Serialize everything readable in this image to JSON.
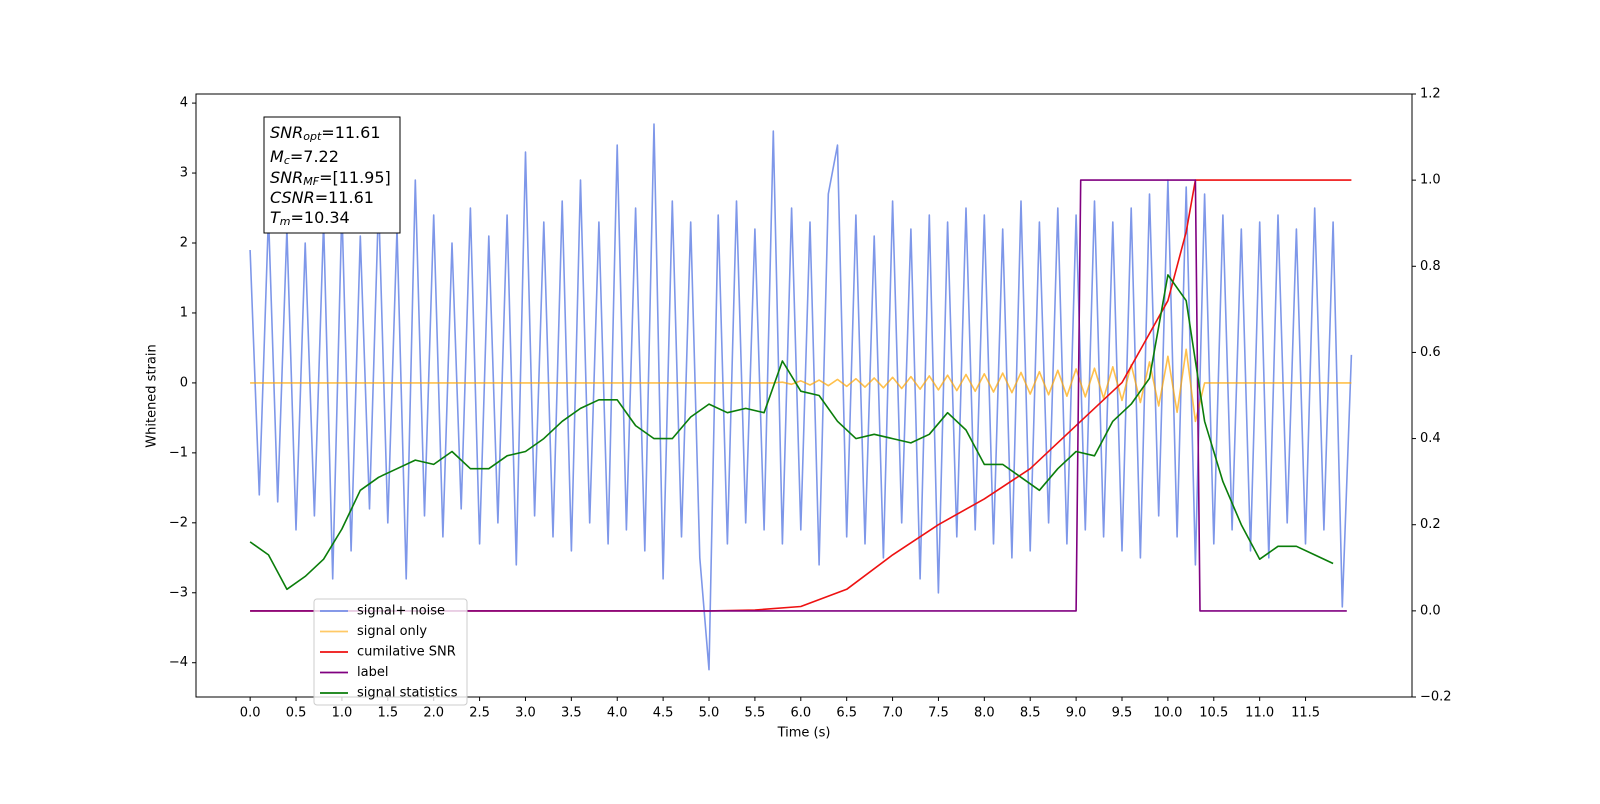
{
  "chart_data": {
    "type": "line",
    "xlabel": "Time (s)",
    "ylabel": "Whitened strain",
    "xlim": [
      -0.59,
      12.66
    ],
    "ylim": [
      -4.49,
      4.13
    ],
    "y2lim": [
      -0.2,
      1.2
    ],
    "xticks": [
      {
        "value": 0,
        "label": "0.0"
      },
      0.5,
      {
        "value": 1,
        "label": "1.0"
      },
      1.5,
      {
        "value": 2,
        "label": "2.0"
      },
      2.5,
      {
        "value": 3,
        "label": "3.0"
      },
      3.5,
      {
        "value": 4,
        "label": "4.0"
      },
      4.5,
      {
        "value": 5,
        "label": "5.0"
      },
      5.5,
      {
        "value": 6,
        "label": "6.0"
      },
      6.5,
      {
        "value": 7,
        "label": "7.0"
      },
      7.5,
      {
        "value": 8,
        "label": "8.0"
      },
      8.5,
      {
        "value": 9,
        "label": "9.0"
      },
      9.5,
      {
        "value": 10,
        "label": "10.0"
      },
      10.5,
      {
        "value": 11,
        "label": "11.0"
      },
      11.5
    ],
    "yticks": [
      {
        "value": -4,
        "label": "−4"
      },
      {
        "value": -3,
        "label": "−3"
      },
      {
        "value": -2,
        "label": "−2"
      },
      {
        "value": -1,
        "label": "−1"
      },
      0,
      1,
      2,
      3,
      4
    ],
    "y2ticks": [
      {
        "value": -0.2,
        "label": "−0.2"
      },
      {
        "value": 0,
        "label": "0.0"
      },
      0.2,
      0.4,
      0.6,
      0.8,
      {
        "value": 1,
        "label": "1.0"
      },
      1.2
    ],
    "legend": "lower left",
    "annotation": [
      {
        "symbol": "SNR",
        "subscript": "opt",
        "text": "=11.61"
      },
      {
        "symbol": "M",
        "subscript": "c",
        "text": "=7.22"
      },
      {
        "symbol": "SNR",
        "subscript": "MF",
        "text": "=[11.95]"
      },
      {
        "symbol": "CSNR",
        "subscript": "",
        "text": "=11.61"
      },
      {
        "symbol": "T",
        "subscript": "m",
        "text": "=10.34"
      }
    ],
    "series": [
      {
        "name": "signal+ noise",
        "color": "#7791e8",
        "axis": "y",
        "x": [
          0,
          0.1,
          0.2,
          0.3,
          0.4,
          0.5,
          0.6,
          0.7,
          0.8,
          0.9,
          1,
          1.1,
          1.2,
          1.3,
          1.4,
          1.5,
          1.6,
          1.7,
          1.8,
          1.9,
          2,
          2.1,
          2.2,
          2.3,
          2.4,
          2.5,
          2.6,
          2.7,
          2.8,
          2.9,
          3,
          3.1,
          3.2,
          3.3,
          3.4,
          3.5,
          3.6,
          3.7,
          3.8,
          3.9,
          4,
          4.1,
          4.2,
          4.3,
          4.4,
          4.5,
          4.6,
          4.7,
          4.8,
          4.9,
          5,
          5.1,
          5.2,
          5.3,
          5.4,
          5.5,
          5.6,
          5.7,
          5.8,
          5.9,
          6,
          6.1,
          6.2,
          6.3,
          6.4,
          6.5,
          6.6,
          6.7,
          6.8,
          6.9,
          7,
          7.1,
          7.2,
          7.3,
          7.4,
          7.5,
          7.6,
          7.7,
          7.8,
          7.9,
          8,
          8.1,
          8.2,
          8.3,
          8.4,
          8.5,
          8.6,
          8.7,
          8.8,
          8.9,
          9,
          9.1,
          9.2,
          9.3,
          9.4,
          9.5,
          9.6,
          9.7,
          9.8,
          9.9,
          10,
          10.1,
          10.2,
          10.3,
          10.4,
          10.5,
          10.6,
          10.7,
          10.8,
          10.9,
          11,
          11.1,
          11.2,
          11.3,
          11.4,
          11.5,
          11.6,
          11.7,
          11.8,
          11.9,
          12
        ],
        "values": [
          1.9,
          -1.6,
          2.4,
          -1.7,
          2.2,
          -2.1,
          2.0,
          -1.9,
          2.3,
          -2.8,
          2.5,
          -2.4,
          2.1,
          -1.8,
          2.6,
          -2.0,
          2.2,
          -2.8,
          2.9,
          -1.9,
          2.4,
          -2.2,
          2.0,
          -1.8,
          2.5,
          -2.3,
          2.1,
          -2.0,
          2.4,
          -2.6,
          3.3,
          -1.9,
          2.3,
          -2.2,
          2.6,
          -2.4,
          2.9,
          -2.0,
          2.3,
          -2.3,
          3.4,
          -2.1,
          2.5,
          -2.4,
          3.7,
          -2.8,
          2.6,
          -2.2,
          2.3,
          -2.5,
          -4.1,
          2.4,
          -2.3,
          2.6,
          -2.0,
          2.2,
          -2.1,
          3.6,
          -2.3,
          2.5,
          -2.1,
          2.3,
          -2.6,
          2.7,
          3.4,
          -2.2,
          2.4,
          -2.3,
          2.1,
          -2.5,
          2.6,
          -2.0,
          2.2,
          -2.8,
          2.4,
          -3.0,
          2.3,
          -2.2,
          2.5,
          -2.1,
          2.4,
          -2.3,
          2.2,
          -2.5,
          2.6,
          -2.4,
          2.3,
          -2.0,
          2.5,
          -2.3,
          2.4,
          -2.1,
          2.6,
          -2.2,
          2.3,
          -2.4,
          2.5,
          -2.5,
          2.7,
          -1.9,
          2.9,
          -2.2,
          2.8,
          -2.6,
          2.7,
          -2.3,
          2.4,
          -2.1,
          2.2,
          -2.4,
          2.3,
          -2.5,
          2.4,
          -2.0,
          2.2,
          -2.3,
          2.5,
          -2.1,
          2.3,
          -3.2,
          0.4
        ]
      },
      {
        "name": "signal only",
        "color": "#ffa500",
        "axis": "y",
        "x": [
          0,
          5.7,
          5.8,
          5.9,
          6,
          6.1,
          6.2,
          6.3,
          6.4,
          6.5,
          6.6,
          6.7,
          6.8,
          6.9,
          7,
          7.1,
          7.2,
          7.3,
          7.4,
          7.5,
          7.6,
          7.7,
          7.8,
          7.9,
          8,
          8.1,
          8.2,
          8.3,
          8.4,
          8.5,
          8.6,
          8.7,
          8.8,
          8.9,
          9,
          9.1,
          9.2,
          9.3,
          9.4,
          9.5,
          9.6,
          9.7,
          9.8,
          9.9,
          10,
          10.1,
          10.2,
          10.3,
          10.4,
          12
        ],
        "values": [
          0,
          0,
          0.01,
          -0.02,
          0.03,
          -0.03,
          0.04,
          -0.04,
          0.05,
          -0.05,
          0.06,
          -0.06,
          0.07,
          -0.07,
          0.08,
          -0.08,
          0.09,
          -0.09,
          0.1,
          -0.1,
          0.11,
          -0.11,
          0.12,
          -0.12,
          0.13,
          -0.13,
          0.14,
          -0.14,
          0.15,
          -0.16,
          0.16,
          -0.17,
          0.18,
          -0.19,
          0.2,
          -0.2,
          0.21,
          -0.22,
          0.23,
          -0.25,
          0.26,
          -0.28,
          0.3,
          -0.33,
          0.38,
          -0.42,
          0.48,
          -0.55,
          0,
          0
        ]
      },
      {
        "name": "cumilative SNR",
        "color": "#ee1111",
        "axis": "y2",
        "x": [
          0,
          5.0,
          5.5,
          6.0,
          6.5,
          7.0,
          7.5,
          8.0,
          8.5,
          9.0,
          9.5,
          10.0,
          10.2,
          10.3,
          10.35,
          12.0
        ],
        "values": [
          0,
          0,
          0.002,
          0.01,
          0.05,
          0.13,
          0.2,
          0.26,
          0.33,
          0.43,
          0.53,
          0.72,
          0.88,
          1.0,
          1.0,
          1.0
        ]
      },
      {
        "name": "label",
        "color": "#800080",
        "axis": "y2",
        "x": [
          0,
          9.0,
          9.05,
          10.3,
          10.35,
          11.95
        ],
        "values": [
          0,
          0,
          1,
          1,
          0,
          0
        ]
      },
      {
        "name": "signal statistics",
        "color": "#0a7d0a",
        "axis": "y2",
        "x": [
          0,
          0.2,
          0.4,
          0.6,
          0.8,
          1,
          1.2,
          1.4,
          1.6,
          1.8,
          2,
          2.2,
          2.4,
          2.6,
          2.8,
          3,
          3.2,
          3.4,
          3.6,
          3.8,
          4,
          4.2,
          4.4,
          4.6,
          4.8,
          5,
          5.2,
          5.4,
          5.6,
          5.8,
          6,
          6.2,
          6.4,
          6.6,
          6.8,
          7,
          7.2,
          7.4,
          7.6,
          7.8,
          8,
          8.2,
          8.4,
          8.6,
          8.8,
          9,
          9.2,
          9.4,
          9.6,
          9.8,
          10,
          10.2,
          10.4,
          10.6,
          10.8,
          11,
          11.2,
          11.4,
          11.6,
          11.8
        ],
        "values": [
          0.16,
          0.13,
          0.05,
          0.08,
          0.12,
          0.19,
          0.28,
          0.31,
          0.33,
          0.35,
          0.34,
          0.37,
          0.33,
          0.33,
          0.36,
          0.37,
          0.4,
          0.44,
          0.47,
          0.49,
          0.49,
          0.43,
          0.4,
          0.4,
          0.45,
          0.48,
          0.46,
          0.47,
          0.46,
          0.58,
          0.51,
          0.5,
          0.44,
          0.4,
          0.41,
          0.4,
          0.39,
          0.41,
          0.46,
          0.42,
          0.34,
          0.34,
          0.31,
          0.28,
          0.33,
          0.37,
          0.36,
          0.44,
          0.48,
          0.54,
          0.78,
          0.72,
          0.44,
          0.3,
          0.2,
          0.12,
          0.15,
          0.15,
          0.13,
          0.11
        ]
      }
    ]
  }
}
